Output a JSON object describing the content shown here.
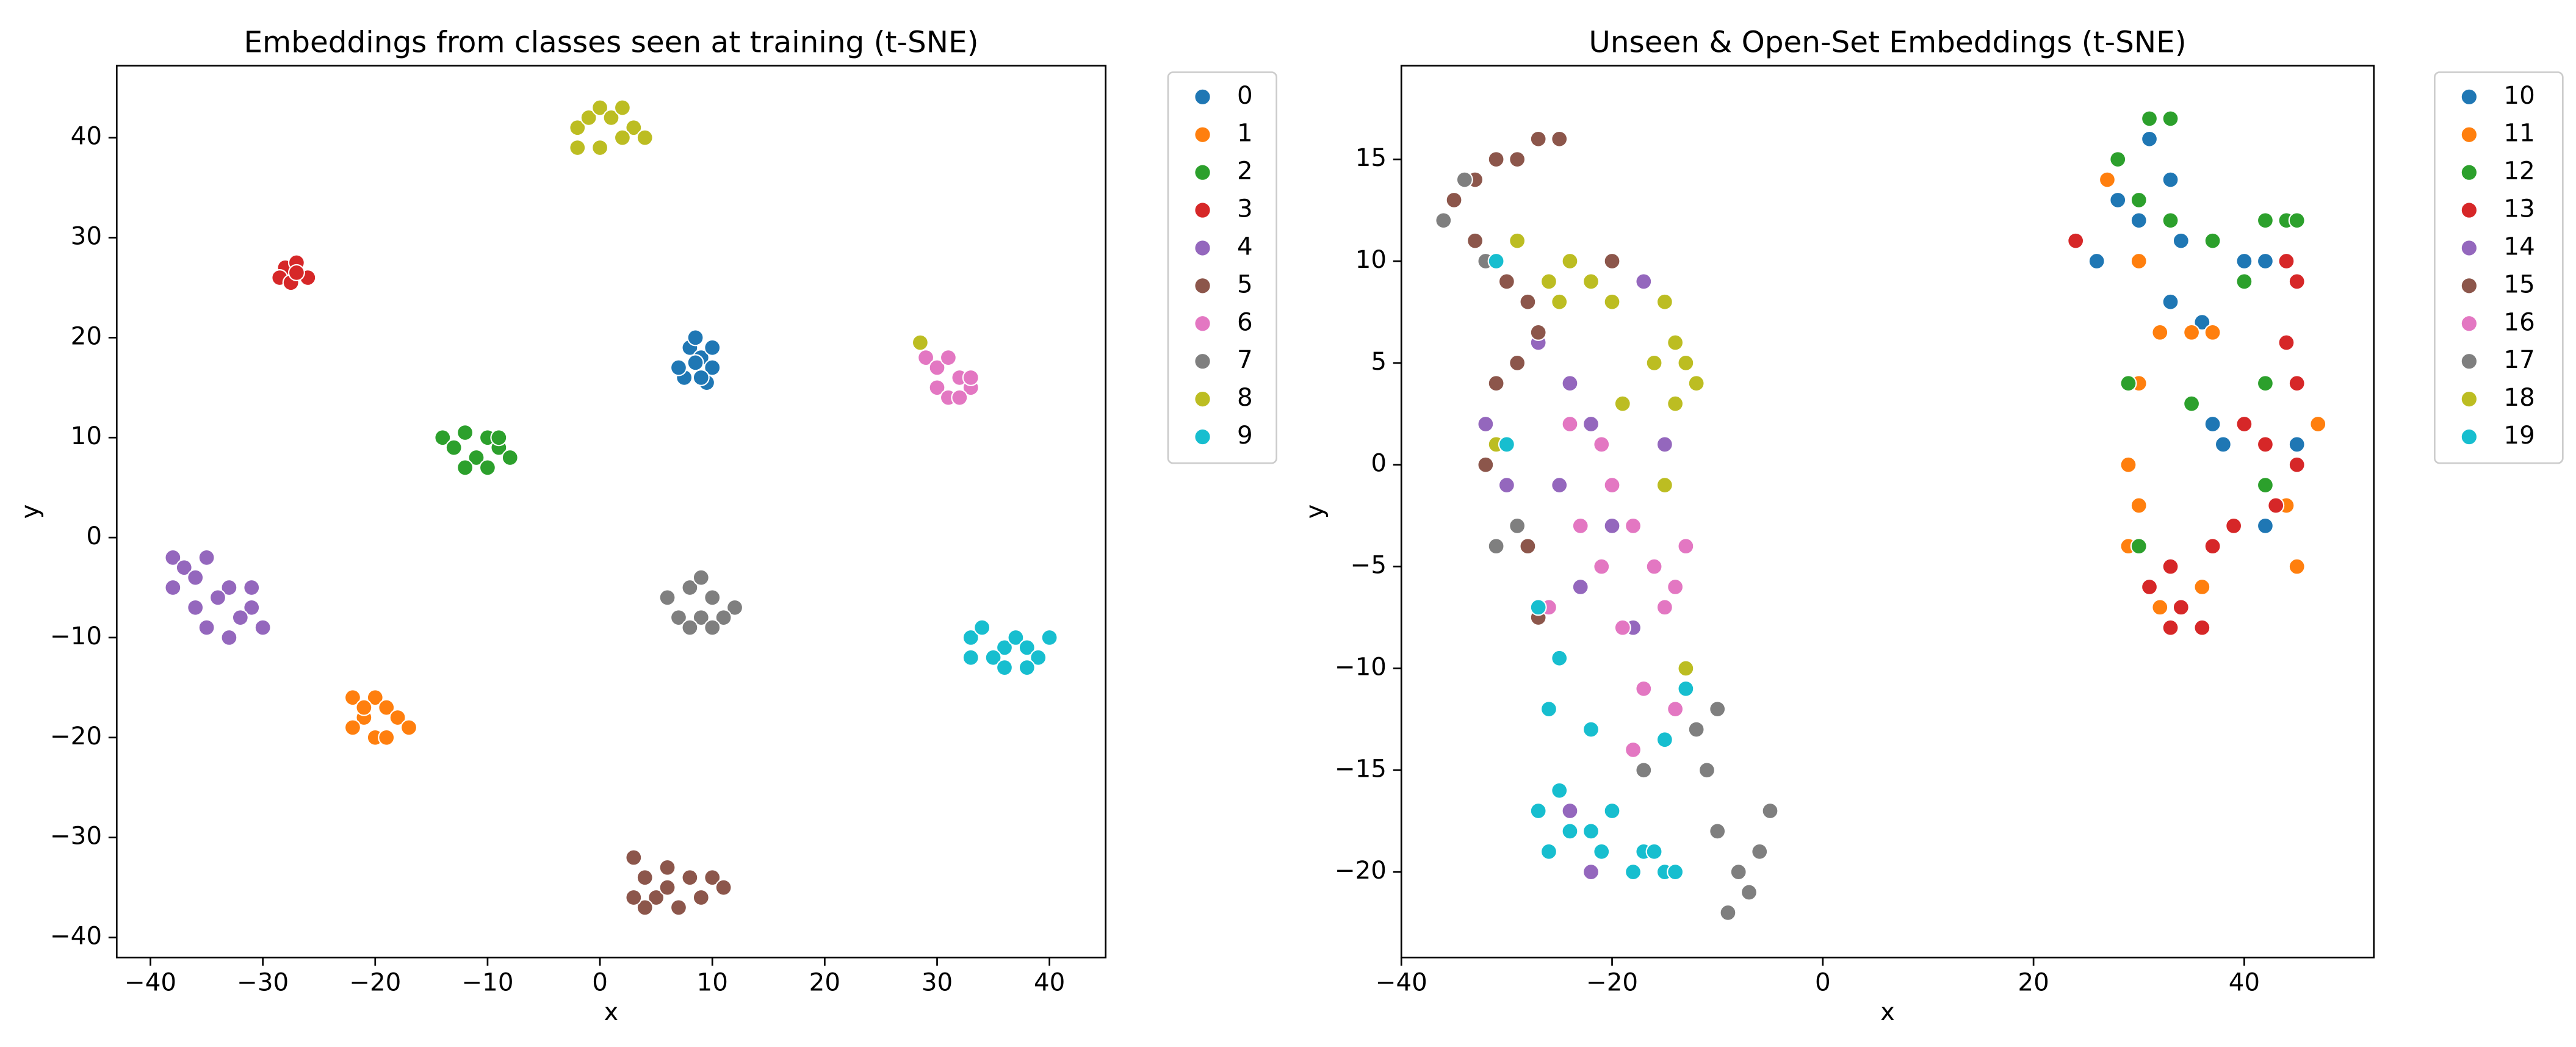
{
  "chart_data": [
    {
      "type": "scatter",
      "title": "Embeddings from classes seen at training (t-SNE)",
      "x_label": "x",
      "y_label": "y",
      "xlim": [
        -43,
        45
      ],
      "ylim": [
        -42,
        47.2
      ],
      "xticks": [
        {
          "value": -40,
          "label": "−40"
        },
        {
          "value": -30,
          "label": "−30"
        },
        {
          "value": -20,
          "label": "−20"
        },
        {
          "value": -10,
          "label": "−10"
        },
        0,
        10,
        20,
        30,
        40
      ],
      "yticks": [
        {
          "value": -40,
          "label": "−40"
        },
        {
          "value": -30,
          "label": "−30"
        },
        {
          "value": -20,
          "label": "−20"
        },
        {
          "value": -10,
          "label": "−10"
        },
        0,
        10,
        20,
        30,
        40
      ],
      "legend": "outside right",
      "series": [
        {
          "name": "0",
          "color": "#1f77b4",
          "x": [
            8,
            9,
            10,
            7.5,
            9.5,
            8.5,
            10,
            7,
            9,
            8.5
          ],
          "values": [
            19,
            18,
            17,
            16,
            15.5,
            17.5,
            19,
            17,
            16,
            20
          ]
        },
        {
          "name": "1",
          "color": "#ff7f0e",
          "x": [
            -22,
            -20,
            -19,
            -21,
            -18,
            -17,
            -20,
            -22,
            -19,
            -21
          ],
          "values": [
            -16,
            -16,
            -17,
            -18,
            -18,
            -19,
            -20,
            -19,
            -20,
            -17
          ]
        },
        {
          "name": "2",
          "color": "#2ca02c",
          "x": [
            -14,
            -12,
            -10,
            -9,
            -8,
            -11,
            -13,
            -10,
            -12,
            -9
          ],
          "values": [
            10,
            10.5,
            10,
            9,
            8,
            8,
            9,
            7,
            7,
            10
          ]
        },
        {
          "name": "3",
          "color": "#d62728",
          "x": [
            -28,
            -27,
            -26,
            -28.5,
            -27.5,
            -27
          ],
          "values": [
            27,
            27.5,
            26,
            26,
            25.5,
            26.5
          ]
        },
        {
          "name": "4",
          "color": "#9467bd",
          "x": [
            -38,
            -37,
            -36,
            -35,
            -33,
            -31,
            -30,
            -32,
            -34,
            -36,
            -38,
            -35,
            -31,
            -33
          ],
          "values": [
            -2,
            -3,
            -4,
            -2,
            -5,
            -7,
            -9,
            -8,
            -6,
            -7,
            -5,
            -9,
            -5,
            -10
          ]
        },
        {
          "name": "5",
          "color": "#8c564b",
          "x": [
            3,
            4,
            6,
            8,
            10,
            11,
            5,
            7,
            9,
            4,
            6,
            3
          ],
          "values": [
            -32,
            -34,
            -33,
            -34,
            -34,
            -35,
            -36,
            -37,
            -36,
            -37,
            -35,
            -36
          ]
        },
        {
          "name": "6",
          "color": "#e377c2",
          "x": [
            29,
            30,
            31,
            32,
            33,
            30,
            31,
            32,
            33
          ],
          "values": [
            18,
            17,
            18,
            16,
            15,
            15,
            14,
            14,
            16
          ]
        },
        {
          "name": "7",
          "color": "#7f7f7f",
          "x": [
            6,
            8,
            9,
            10,
            12,
            7,
            9,
            11,
            8,
            10
          ],
          "values": [
            -6,
            -5,
            -4,
            -6,
            -7,
            -8,
            -8,
            -8,
            -9,
            -9
          ]
        },
        {
          "name": "8",
          "color": "#bcbd22",
          "x": [
            -2,
            -1,
            0,
            1,
            2,
            3,
            4,
            0,
            2,
            -2,
            28.5
          ],
          "values": [
            41,
            42,
            43,
            42,
            43,
            41,
            40,
            39,
            40,
            39,
            19.5
          ]
        },
        {
          "name": "9",
          "color": "#17becf",
          "x": [
            33,
            34,
            36,
            37,
            38,
            39,
            40,
            35,
            36,
            38,
            33
          ],
          "values": [
            -10,
            -9,
            -11,
            -10,
            -11,
            -12,
            -10,
            -12,
            -13,
            -13,
            -12
          ]
        }
      ]
    },
    {
      "type": "scatter",
      "title": "Unseen & Open-Set Embeddings (t-SNE)",
      "x_label": "x",
      "y_label": "y",
      "xlim": [
        -40,
        52.3
      ],
      "ylim": [
        -24.2,
        19.6
      ],
      "xticks": [
        {
          "value": -40,
          "label": "−40"
        },
        {
          "value": -20,
          "label": "−20"
        },
        0,
        20,
        40
      ],
      "yticks": [
        {
          "value": -20,
          "label": "−20"
        },
        {
          "value": -15,
          "label": "−15"
        },
        {
          "value": -10,
          "label": "−10"
        },
        {
          "value": -5,
          "label": "−5"
        },
        0,
        5,
        10,
        15
      ],
      "legend": "outside right",
      "series": [
        {
          "name": "10",
          "color": "#1f77b4",
          "x": [
            28,
            31,
            33,
            34,
            30,
            26,
            33,
            36,
            40,
            42,
            38,
            42,
            37,
            33,
            45
          ],
          "values": [
            13,
            16,
            14,
            11,
            12,
            10,
            8,
            7,
            10,
            10,
            1,
            -3,
            2,
            -8,
            1
          ]
        },
        {
          "name": "11",
          "color": "#ff7f0e",
          "x": [
            27,
            30,
            32,
            35,
            30,
            29,
            30,
            29,
            33,
            32,
            36,
            45,
            44,
            47,
            37
          ],
          "values": [
            14,
            10,
            6.5,
            6.5,
            4,
            0,
            -2,
            -4,
            -5,
            -7,
            -6,
            -5,
            -2,
            2,
            6.5
          ]
        },
        {
          "name": "12",
          "color": "#2ca02c",
          "x": [
            28,
            31,
            33,
            30,
            33,
            37,
            40,
            42,
            44,
            45,
            29,
            35,
            42,
            42,
            30
          ],
          "values": [
            15,
            17,
            17,
            13,
            12,
            11,
            9,
            12,
            12,
            12,
            4,
            3,
            4,
            -1,
            -4
          ]
        },
        {
          "name": "13",
          "color": "#d62728",
          "x": [
            24,
            44,
            45,
            44,
            45,
            40,
            42,
            45,
            43,
            39,
            37,
            33,
            31,
            34,
            36,
            33
          ],
          "values": [
            11,
            10,
            9,
            6,
            4,
            2,
            1,
            0,
            -2,
            -3,
            -4,
            -5,
            -6,
            -7,
            -8,
            -8
          ]
        },
        {
          "name": "14",
          "color": "#9467bd",
          "x": [
            -30,
            -28,
            -25,
            -27,
            -24,
            -22,
            -20,
            -18,
            -23,
            -24,
            -22,
            -17,
            -15,
            -32
          ],
          "values": [
            -1,
            -4,
            -1,
            6,
            4,
            2,
            -3,
            -8,
            -6,
            -17,
            -20,
            9,
            1,
            2
          ]
        },
        {
          "name": "15",
          "color": "#8c564b",
          "x": [
            -35,
            -33,
            -31,
            -29,
            -27,
            -25,
            -33,
            -30,
            -28,
            -31,
            -29,
            -27,
            -25,
            -20,
            -32,
            -27,
            -28
          ],
          "values": [
            13,
            14,
            15,
            15,
            16,
            16,
            11,
            9,
            8,
            4,
            5,
            6.5,
            8,
            10,
            0,
            -7.5,
            -4
          ]
        },
        {
          "name": "16",
          "color": "#e377c2",
          "x": [
            -24,
            -21,
            -20,
            -23,
            -21,
            -18,
            -16,
            -15,
            -13,
            -19,
            -26,
            -22,
            -18,
            -14,
            -17,
            -14
          ],
          "values": [
            2,
            1,
            -1,
            -3,
            -5,
            -3,
            -5,
            -7,
            -4,
            -8,
            -7,
            -13,
            -14,
            -12,
            -11,
            -6
          ]
        },
        {
          "name": "17",
          "color": "#7f7f7f",
          "x": [
            -36,
            -34,
            -32,
            -29,
            -31,
            -17,
            -13,
            -11,
            -10,
            -8,
            -7,
            -9,
            -6,
            -5,
            -12,
            -10
          ],
          "values": [
            12,
            14,
            10,
            -3,
            -4,
            -15,
            -10,
            -15,
            -18,
            -20,
            -21,
            -22,
            -19,
            -17,
            -13,
            -12
          ]
        },
        {
          "name": "18",
          "color": "#bcbd22",
          "x": [
            -26,
            -24,
            -22,
            -25,
            -20,
            -15,
            -14,
            -13,
            -16,
            -12,
            -14,
            -19,
            -15,
            -31,
            -29,
            -13
          ],
          "values": [
            9,
            10,
            9,
            8,
            8,
            8,
            6,
            5,
            5,
            4,
            3,
            3,
            -1,
            1,
            11,
            -10
          ]
        },
        {
          "name": "19",
          "color": "#17becf",
          "x": [
            -31,
            -30,
            -27,
            -25,
            -26,
            -25,
            -27,
            -24,
            -26,
            -22,
            -20,
            -21,
            -18,
            -17,
            -15,
            -14,
            -16,
            -13,
            -22,
            -15
          ],
          "values": [
            10,
            1,
            -7,
            -9.5,
            -12,
            -16,
            -17,
            -18,
            -19,
            -18,
            -17,
            -19,
            -20,
            -19,
            -20,
            -20,
            -19,
            -11,
            -13,
            -13.5
          ]
        }
      ]
    }
  ]
}
